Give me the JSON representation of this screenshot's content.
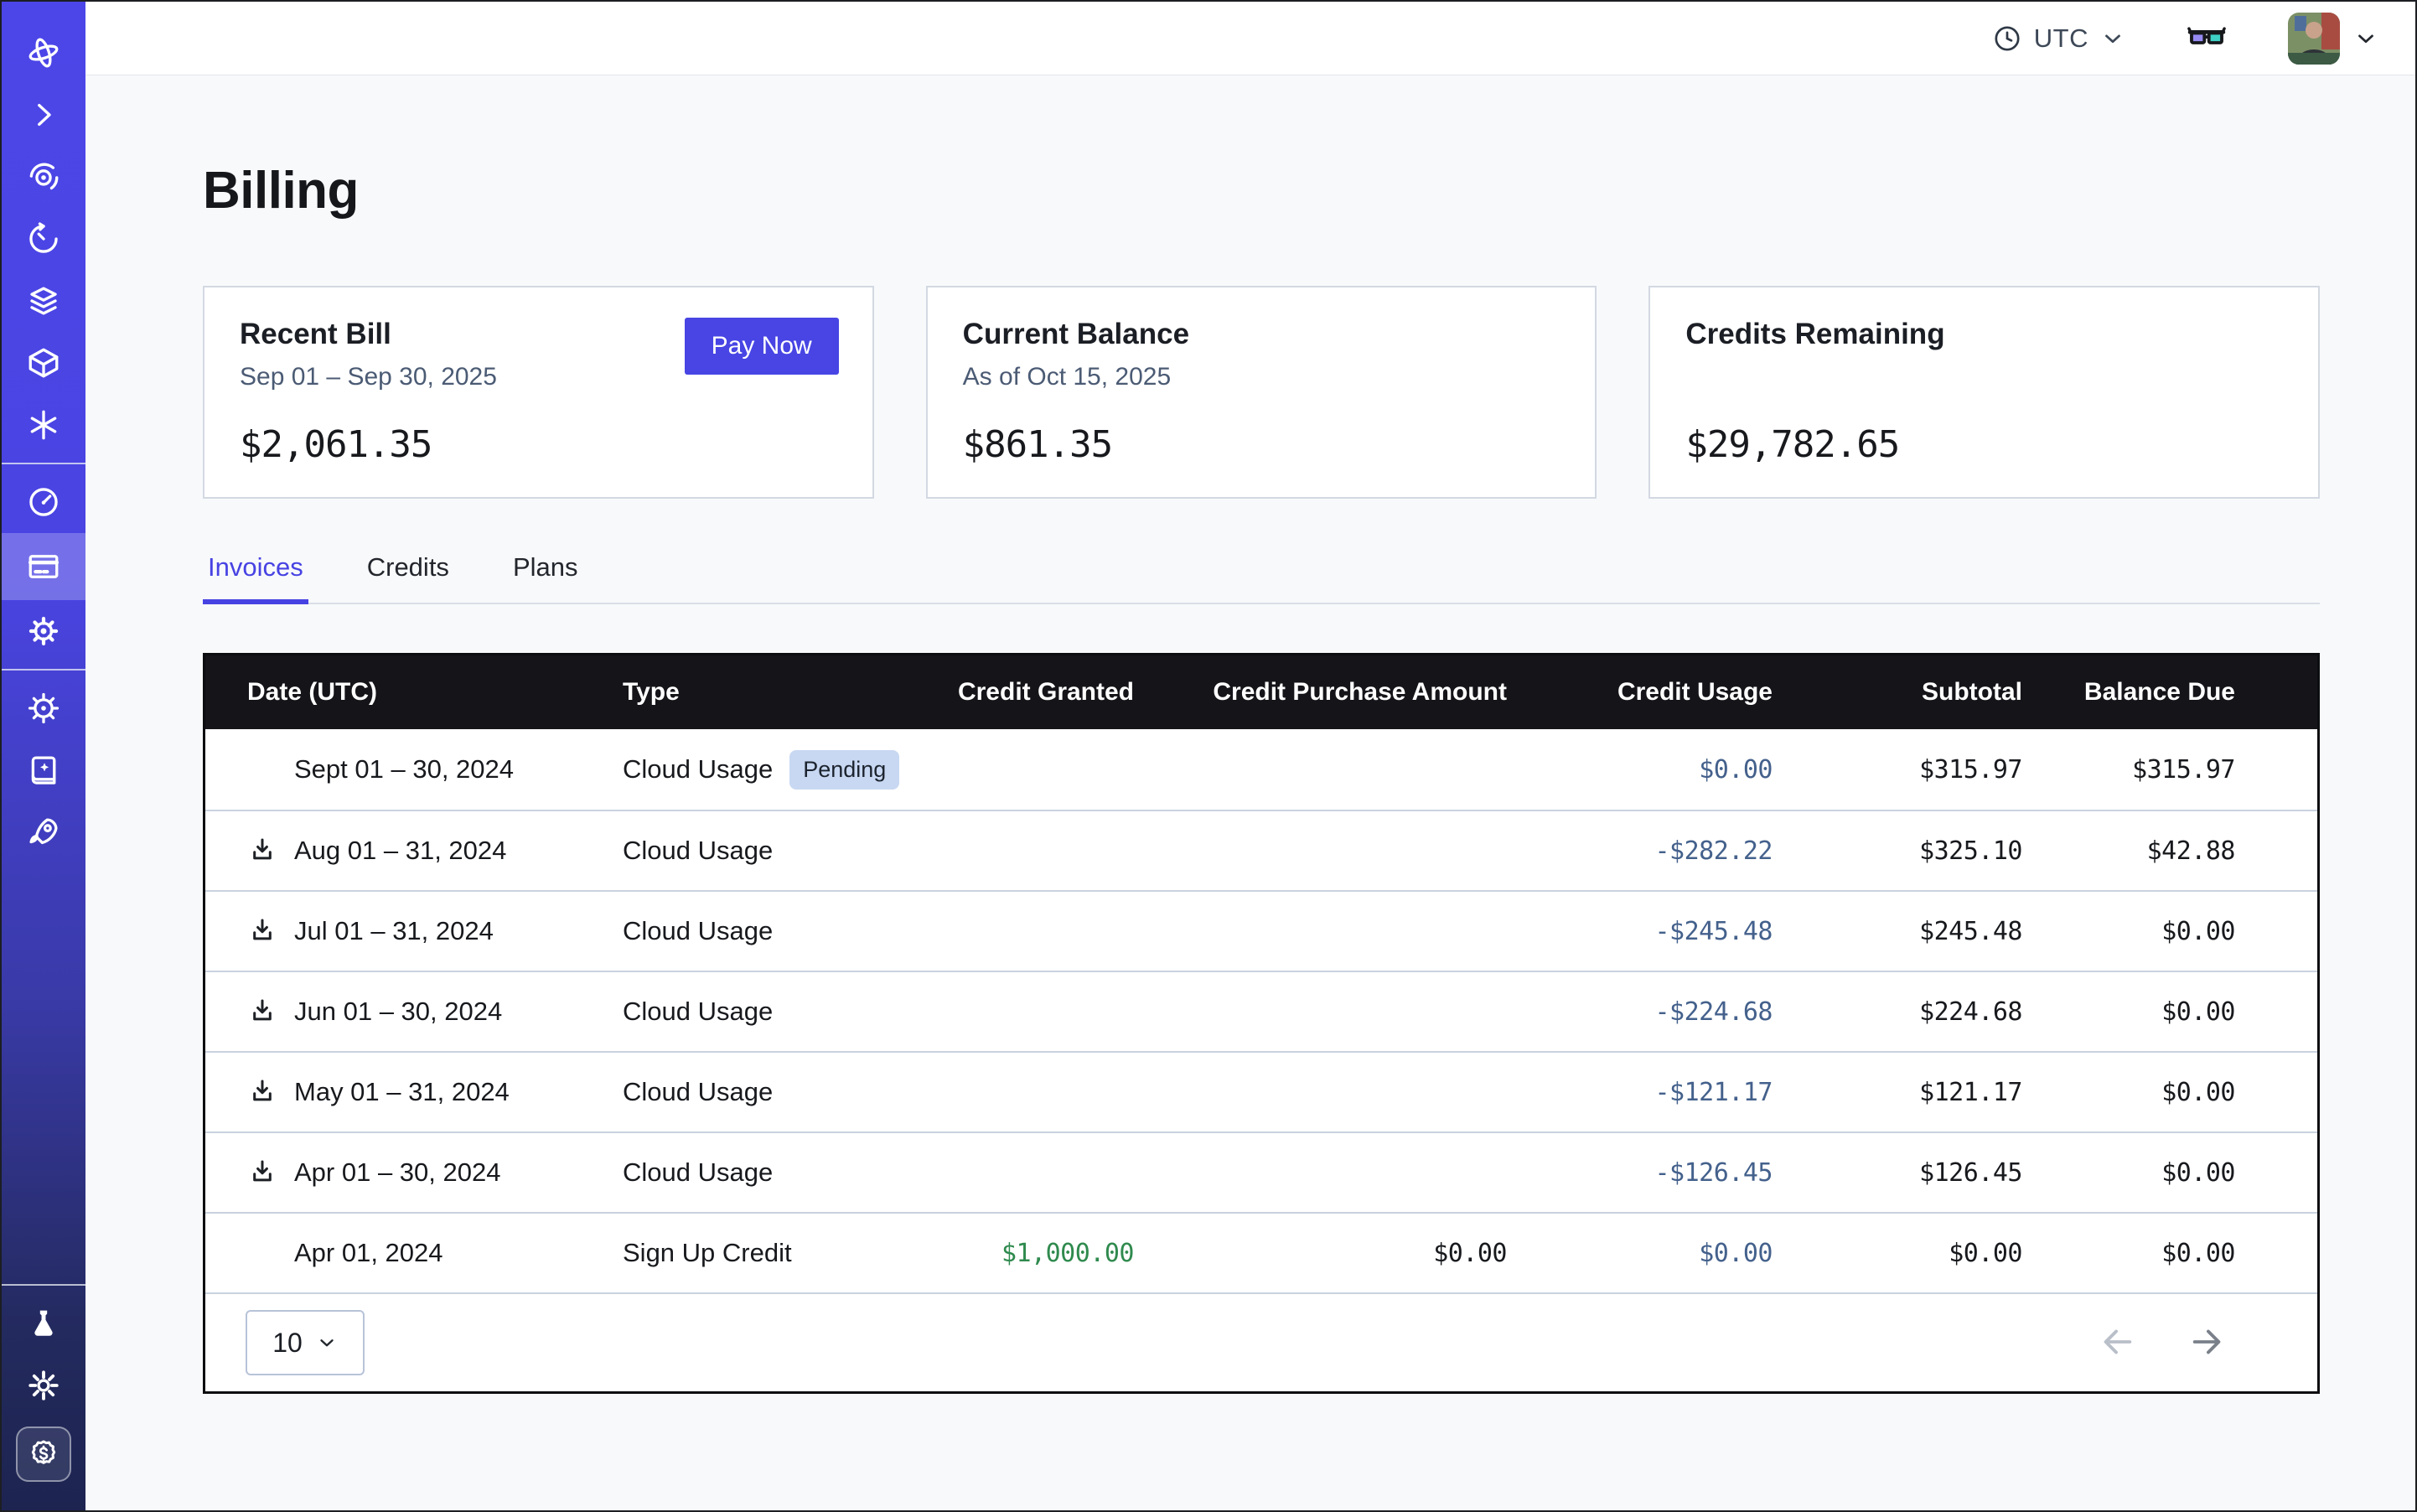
{
  "topbar": {
    "timezone": "UTC",
    "icons": [
      "clock-icon",
      "chevron-down-icon",
      "3d-glasses-icon",
      "avatar",
      "chevron-down-icon"
    ]
  },
  "sidebar": {
    "icons_top": [
      "orbit-logo",
      "chevron-right-icon",
      "spiral-eye-icon",
      "history-timer-icon",
      "layers-icon",
      "cube-icon",
      "asterisk-icon"
    ],
    "icons_mid": [
      "gauge-icon",
      "billing-card-icon",
      "gear-icon"
    ],
    "icons_lower": [
      "helm-wheel-icon",
      "docs-book-icon",
      "rocket-icon"
    ],
    "icons_bottom": [
      "flask-icon",
      "sun-icon",
      "dollar-badge-icon"
    ],
    "active_item": "billing"
  },
  "page": {
    "title": "Billing"
  },
  "cards": [
    {
      "title": "Recent Bill",
      "subtitle": "Sep 01 – Sep 30, 2025",
      "amount": "$2,061.35",
      "action": "Pay Now"
    },
    {
      "title": "Current Balance",
      "subtitle": "As of Oct 15, 2025",
      "amount": "$861.35"
    },
    {
      "title": "Credits Remaining",
      "subtitle": "",
      "amount": "$29,782.65"
    }
  ],
  "tabs": [
    {
      "label": "Invoices",
      "active": true
    },
    {
      "label": "Credits",
      "active": false
    },
    {
      "label": "Plans",
      "active": false
    }
  ],
  "table": {
    "columns": [
      "Date (UTC)",
      "Type",
      "Credit Granted",
      "Credit Purchase Amount",
      "Credit Usage",
      "Subtotal",
      "Balance Due"
    ],
    "rows": [
      {
        "date": "Sept 01 – 30, 2024",
        "type": "Cloud Usage",
        "badge": "Pending",
        "download": false,
        "credit_granted": "",
        "credit_purchase": "",
        "credit_usage": "$0.00",
        "subtotal": "$315.97",
        "balance_due": "$315.97"
      },
      {
        "date": "Aug 01 – 31, 2024",
        "type": "Cloud Usage",
        "badge": "",
        "download": true,
        "credit_granted": "",
        "credit_purchase": "",
        "credit_usage": "-$282.22",
        "subtotal": "$325.10",
        "balance_due": "$42.88"
      },
      {
        "date": "Jul 01 – 31, 2024",
        "type": "Cloud Usage",
        "badge": "",
        "download": true,
        "credit_granted": "",
        "credit_purchase": "",
        "credit_usage": "-$245.48",
        "subtotal": "$245.48",
        "balance_due": "$0.00"
      },
      {
        "date": "Jun 01 – 30, 2024",
        "type": "Cloud Usage",
        "badge": "",
        "download": true,
        "credit_granted": "",
        "credit_purchase": "",
        "credit_usage": "-$224.68",
        "subtotal": "$224.68",
        "balance_due": "$0.00"
      },
      {
        "date": "May 01 – 31, 2024",
        "type": "Cloud Usage",
        "badge": "",
        "download": true,
        "credit_granted": "",
        "credit_purchase": "",
        "credit_usage": "-$121.17",
        "subtotal": "$121.17",
        "balance_due": "$0.00"
      },
      {
        "date": "Apr 01 – 30, 2024",
        "type": "Cloud Usage",
        "badge": "",
        "download": true,
        "credit_granted": "",
        "credit_purchase": "",
        "credit_usage": "-$126.45",
        "subtotal": "$126.45",
        "balance_due": "$0.00"
      },
      {
        "date": "Apr 01, 2024",
        "type": "Sign Up Credit",
        "badge": "",
        "download": false,
        "granted_green": true,
        "credit_granted": "$1,000.00",
        "credit_purchase": "$0.00",
        "credit_usage": "$0.00",
        "subtotal": "$0.00",
        "balance_due": "$0.00"
      }
    ],
    "pagination": {
      "page_size": "10"
    }
  },
  "colors": {
    "accent_indigo": "#4845e4",
    "sidebar_top": "#4c46e8",
    "sidebar_bottom": "#1d2450",
    "table_header_bg": "#141419",
    "credit_usage_blue": "#44618c",
    "credit_granted_green": "#2f8a4e",
    "badge_bg": "#c8d8f2",
    "page_bg": "#f8f9fb"
  }
}
